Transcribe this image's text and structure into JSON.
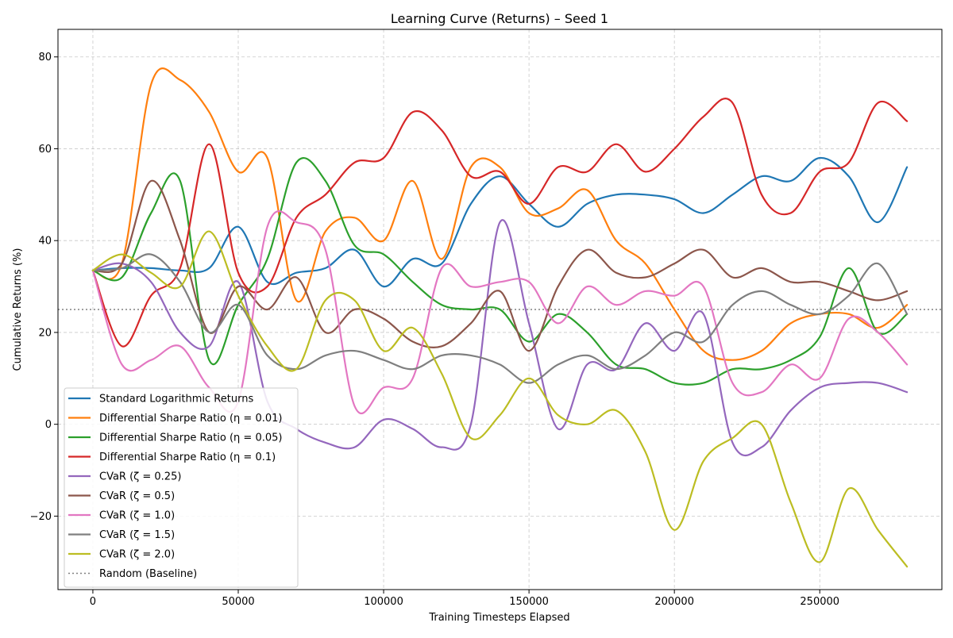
{
  "chart_data": {
    "type": "line",
    "title": "Learning Curve (Returns) – Seed 1",
    "xlabel": "Training Timesteps Elapsed",
    "ylabel": "Cumulative Returns (%)",
    "xlim": [
      -12000,
      292000
    ],
    "ylim": [
      -36,
      86
    ],
    "xticks": [
      0,
      50000,
      100000,
      150000,
      200000,
      250000
    ],
    "xtick_labels": [
      "0",
      "50000",
      "100000",
      "150000",
      "200000",
      "250000"
    ],
    "yticks": [
      -20,
      0,
      20,
      40,
      60,
      80
    ],
    "ytick_labels": [
      "−20",
      "0",
      "20",
      "40",
      "60",
      "80"
    ],
    "grid": true,
    "legend_position": "lower-left",
    "baseline": {
      "name": "Random (Baseline)",
      "y": 25,
      "color": "#808080",
      "style": "dotted"
    },
    "x": [
      0,
      10000,
      20000,
      30000,
      40000,
      50000,
      60000,
      70000,
      80000,
      90000,
      100000,
      110000,
      120000,
      130000,
      140000,
      150000,
      160000,
      170000,
      180000,
      190000,
      200000,
      210000,
      220000,
      230000,
      240000,
      250000,
      260000,
      270000,
      280000
    ],
    "series": [
      {
        "name": "Standard Logarithmic Returns",
        "color": "#1f77b4",
        "values": [
          33.5,
          34,
          34,
          33.5,
          34,
          43,
          31,
          33,
          34,
          38,
          30,
          36,
          35,
          48,
          54,
          48,
          43,
          48,
          50,
          50,
          49,
          46,
          50,
          54,
          53,
          58,
          54,
          44,
          56
        ]
      },
      {
        "name": "Differential Sharpe Ratio (η = 0.01)",
        "color": "#ff7f0e",
        "values": [
          33.5,
          35,
          74,
          75,
          68,
          55,
          58,
          27,
          42,
          45,
          40,
          53,
          36,
          56,
          56,
          46,
          47,
          51,
          40,
          35,
          25,
          16,
          14,
          16,
          22,
          24,
          24,
          21,
          26
        ]
      },
      {
        "name": "Differential Sharpe Ratio (η = 0.05)",
        "color": "#2ca02c",
        "values": [
          33.5,
          32,
          46,
          53,
          14,
          26,
          36,
          57,
          53,
          39,
          37,
          31,
          26,
          25,
          25,
          18,
          24,
          20,
          13,
          12,
          9,
          9,
          12,
          12,
          14,
          19,
          34,
          20,
          24
        ]
      },
      {
        "name": "Differential Sharpe Ratio (η = 0.1)",
        "color": "#d62728",
        "values": [
          33.5,
          17,
          28,
          34,
          61,
          33,
          30,
          45,
          50,
          57,
          58,
          68,
          64,
          54,
          55,
          48,
          56,
          55,
          61,
          55,
          60,
          67,
          70,
          50,
          46,
          55,
          57,
          70,
          66
        ]
      },
      {
        "name": "CVaR (ζ = 0.25)",
        "color": "#9467bd",
        "values": [
          33.5,
          35,
          31,
          20,
          17,
          31,
          5,
          -1,
          -4,
          -5,
          1,
          -1,
          -5,
          0,
          44,
          22,
          -1,
          13,
          12,
          22,
          16,
          24,
          -4,
          -5,
          3,
          8,
          9,
          9,
          7
        ]
      },
      {
        "name": "CVaR (ζ = 0.5)",
        "color": "#8c564b",
        "values": [
          33.5,
          35,
          53,
          40,
          20,
          30,
          25,
          32,
          20,
          25,
          23,
          18,
          17,
          22,
          29,
          16,
          30,
          38,
          33,
          32,
          35,
          38,
          32,
          34,
          31,
          31,
          29,
          27,
          29
        ]
      },
      {
        "name": "CVaR (ζ = 1.0)",
        "color": "#e377c2",
        "values": [
          33.5,
          13,
          14,
          17,
          8,
          5,
          43,
          44,
          38,
          4,
          8,
          10,
          34,
          30,
          31,
          31,
          22,
          30,
          26,
          29,
          28,
          30,
          9,
          7,
          13,
          10,
          23,
          20,
          13
        ]
      },
      {
        "name": "CVaR (ζ = 1.5)",
        "color": "#7f7f7f",
        "values": [
          33.5,
          34,
          37,
          31,
          20,
          26,
          15,
          12,
          15,
          16,
          14,
          12,
          15,
          15,
          13,
          9,
          13,
          15,
          12,
          15,
          20,
          18,
          26,
          29,
          26,
          24,
          28,
          35,
          24
        ]
      },
      {
        "name": "CVaR (ζ = 2.0)",
        "color": "#bcbd22",
        "values": [
          33.5,
          37,
          33,
          30,
          42,
          28,
          17,
          12,
          27,
          27,
          16,
          21,
          11,
          -3,
          2,
          10,
          2,
          0,
          3,
          -6,
          -23,
          -8,
          -3,
          0,
          -17,
          -30,
          -14,
          -23,
          -31
        ]
      }
    ]
  }
}
